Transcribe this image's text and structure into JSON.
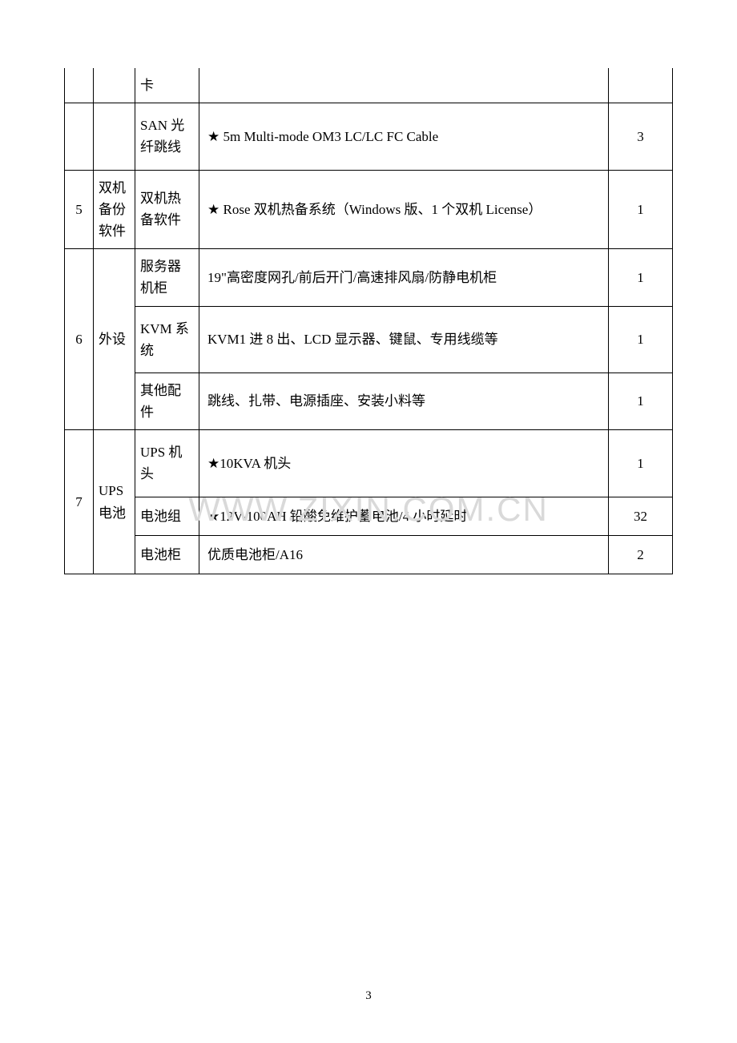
{
  "table": {
    "rows": [
      {
        "idx": "",
        "cat": "",
        "subcat": "卡",
        "desc": "",
        "qty": "",
        "style": "partial-first"
      },
      {
        "idx": "",
        "cat": "",
        "subcat": "SAN 光纤跳线",
        "desc": "★ 5m Multi-mode OM3 LC/LC FC Cable",
        "qty": "3",
        "style": "tall"
      },
      {
        "idx": "5",
        "cat": "双机备份软件",
        "subcat": "双机热备软件",
        "desc": "★ Rose 双机热备系统（Windows 版、1 个双机 License）",
        "qty": "1",
        "style": "tall"
      },
      {
        "idx": "6",
        "cat": "外设",
        "subcat": "服务器机柜",
        "desc": "19\"高密度网孔/前后开门/高速排风扇/防静电机柜",
        "qty": "1",
        "rowspan_idx": 3,
        "rowspan_cat": 3
      },
      {
        "subcat": "KVM 系统",
        "desc": "KVM1 进 8 出、LCD 显示器、键鼠、专用线缆等",
        "qty": "1",
        "style": "tall"
      },
      {
        "subcat": "其他配件",
        "desc": "跳线、扎带、电源插座、安装小料等",
        "qty": "1"
      },
      {
        "idx": "7",
        "cat": "UPS电池",
        "subcat": "UPS 机头",
        "desc": "★10KVA 机头",
        "qty": "1",
        "rowspan_idx": 3,
        "rowspan_cat": 3,
        "style": "tall"
      },
      {
        "subcat": "电池组",
        "desc": "★12V-100AH  铅酸免维护蓄电池/4 小时延时",
        "qty": "32",
        "style": "med"
      },
      {
        "subcat": "电池柜",
        "desc": "优质电池柜/A16",
        "qty": "2",
        "style": "med"
      }
    ]
  },
  "watermark": "WWW.ZIXIN.COM.CN",
  "page_number": "3"
}
